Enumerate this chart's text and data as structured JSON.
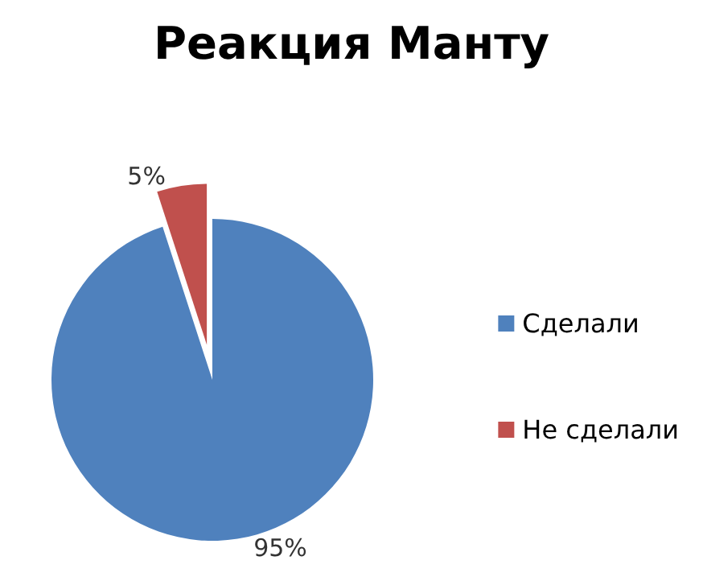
{
  "chart_data": {
    "type": "pie",
    "title": "Реакция Манту",
    "categories": [
      "Сделали",
      "Не сделали"
    ],
    "values": [
      95,
      5
    ],
    "colors": [
      "#4f81bd",
      "#c0504d"
    ],
    "value_labels": [
      "95%",
      "5%"
    ],
    "legend": "right"
  }
}
